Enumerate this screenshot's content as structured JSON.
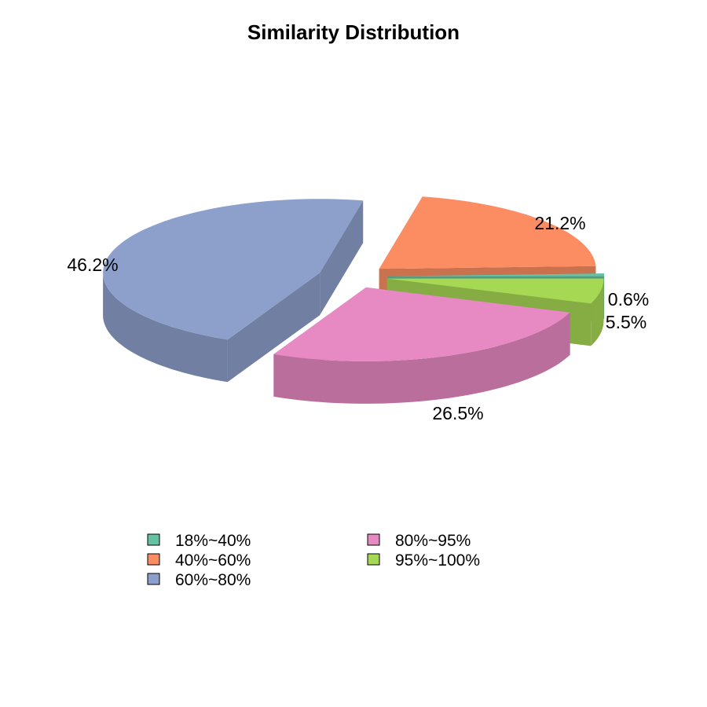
{
  "chart_data": {
    "type": "pie",
    "title": "Similarity Distribution",
    "style": "3d-exploded",
    "slices": [
      {
        "category": "18%~40%",
        "value": 0.6,
        "label": "0.6%",
        "color": "#66C2A5"
      },
      {
        "category": "40%~60%",
        "value": 21.2,
        "label": "21.2%",
        "color": "#FC8D62"
      },
      {
        "category": "60%~80%",
        "value": 46.2,
        "label": "46.2%",
        "color": "#8DA0CB"
      },
      {
        "category": "80%~95%",
        "value": 26.5,
        "label": "26.5%",
        "color": "#E78AC3"
      },
      {
        "category": "95%~100%",
        "value": 5.5,
        "label": "5.5%",
        "color": "#A6D854"
      }
    ],
    "legend_position": "bottom"
  }
}
